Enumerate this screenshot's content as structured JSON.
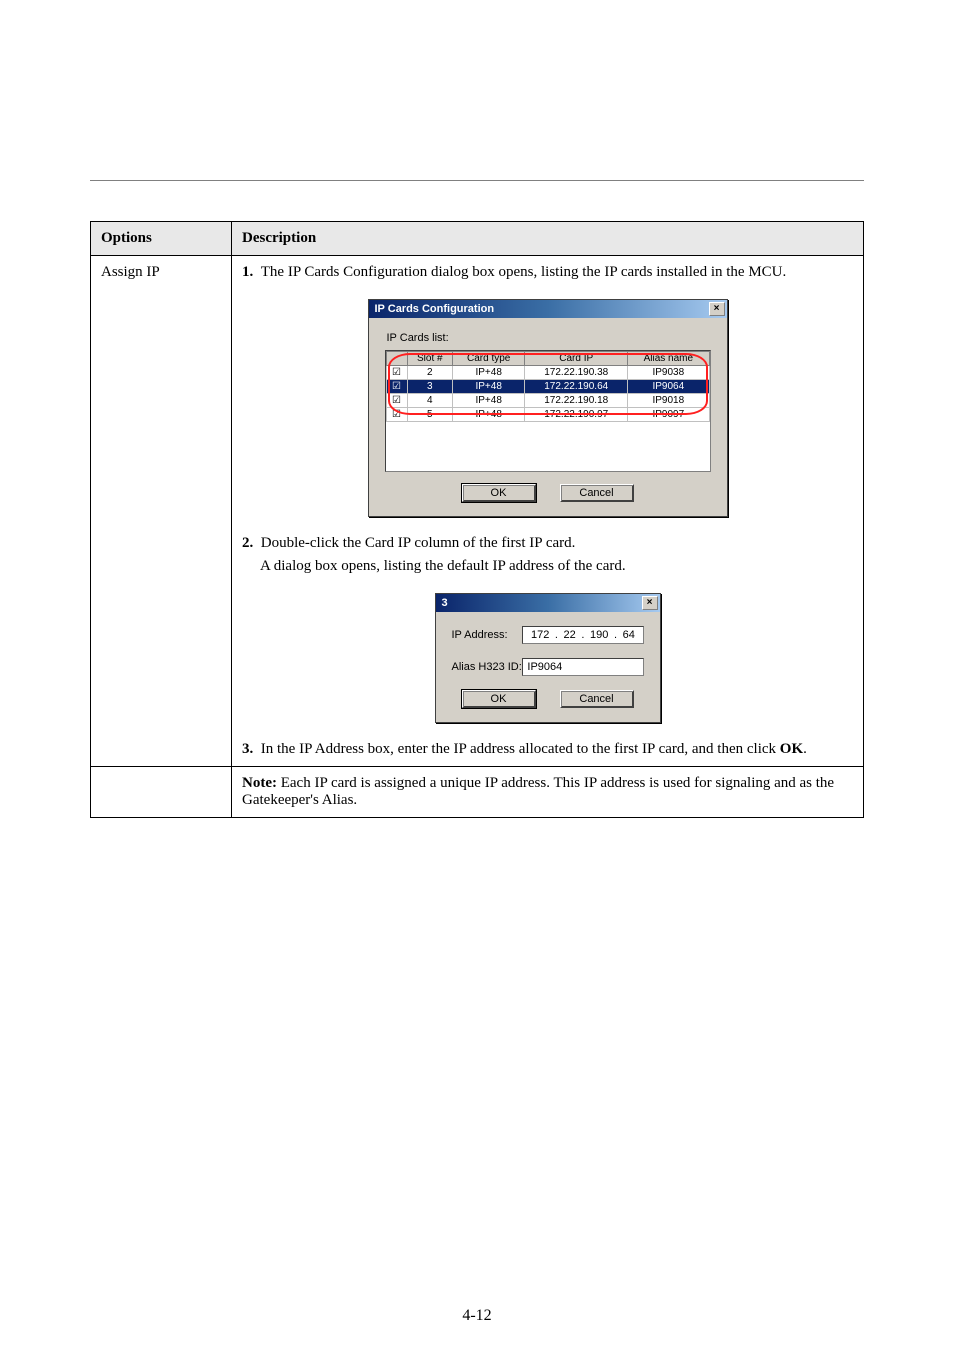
{
  "page": {
    "section_label": "Options",
    "description_label": "Description",
    "assign_ip_label": "Assign IP",
    "step1": "The IP Cards Configuration dialog box opens, listing the IP cards installed in the MCU.",
    "step2_prefix": "Double-click the Card IP column of the first IP card.",
    "step2_body": "A dialog box opens, listing the default IP address of the card.",
    "step3_prefix": "In the IP Address box, enter the IP address allocated to the first IP card, and then click ",
    "step3_ok": "OK",
    "step3_suffix": ".",
    "note_prefix": "Note: ",
    "note_body": "Each IP card is assigned a unique IP address. This IP address is used for signaling and as the Gatekeeper's Alias.",
    "footer_page": "4-12"
  },
  "dlg_cards": {
    "title": "IP Cards Configuration",
    "list_label": "IP Cards list:",
    "headers": {
      "chk": "",
      "slot": "Slot #",
      "type": "Card type",
      "ip": "Card IP",
      "alias": "Alias name"
    },
    "rows": [
      {
        "checked": true,
        "slot": "2",
        "type": "IP+48",
        "ip": "172.22.190.38",
        "alias": "IP9038",
        "selected": false
      },
      {
        "checked": true,
        "slot": "3",
        "type": "IP+48",
        "ip": "172.22.190.64",
        "alias": "IP9064",
        "selected": true
      },
      {
        "checked": true,
        "slot": "4",
        "type": "IP+48",
        "ip": "172.22.190.18",
        "alias": "IP9018",
        "selected": false
      },
      {
        "checked": true,
        "slot": "5",
        "type": "IP+48",
        "ip": "172.22.190.97",
        "alias": "IP9097",
        "selected": false
      }
    ],
    "ok": "OK",
    "cancel": "Cancel"
  },
  "dlg_card": {
    "title": "3",
    "ip_label": "IP Address:",
    "ip_parts": [
      "172",
      "22",
      "190",
      "64"
    ],
    "alias_label": "Alias H323 ID:",
    "alias_value": "IP9064",
    "ok": "OK",
    "cancel": "Cancel"
  }
}
